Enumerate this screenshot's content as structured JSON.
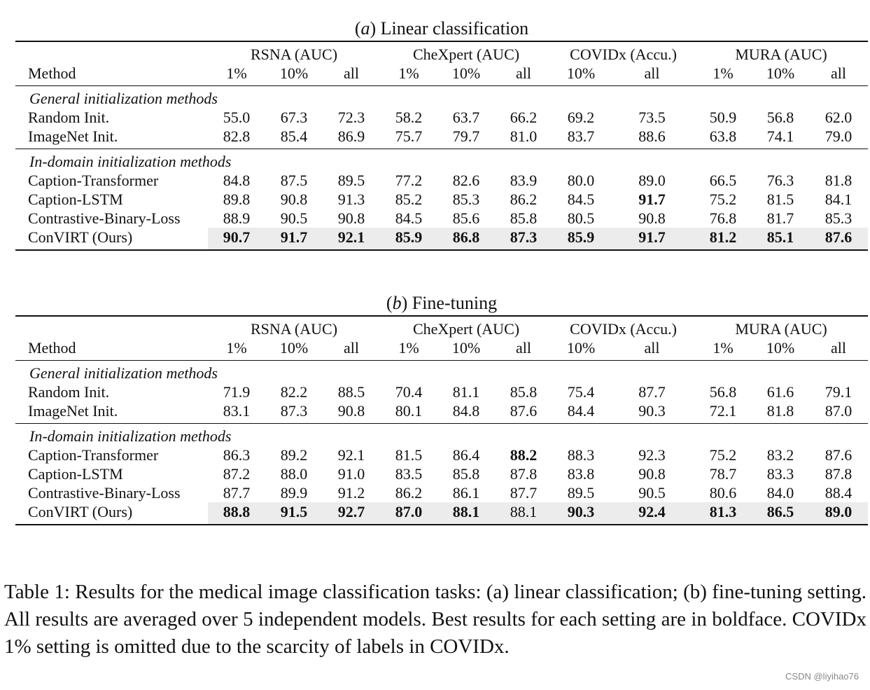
{
  "tables": [
    {
      "label": "a",
      "title": "Linear classification",
      "groups": [
        {
          "name": "RSNA (AUC)",
          "span": 3
        },
        {
          "name": "CheXpert (AUC)",
          "span": 3
        },
        {
          "name": "COVIDx (Accu.)",
          "span": 2
        },
        {
          "name": "MURA (AUC)",
          "span": 3
        }
      ],
      "method_header": "Method",
      "subheaders": [
        "1%",
        "10%",
        "all",
        "1%",
        "10%",
        "all",
        "10%",
        "all",
        "1%",
        "10%",
        "all"
      ],
      "sections": [
        {
          "title": "General initialization methods",
          "rows": [
            {
              "method": "Random Init.",
              "values": [
                "55.0",
                "67.3",
                "72.3",
                "58.2",
                "63.7",
                "66.2",
                "69.2",
                "73.5",
                "50.9",
                "56.8",
                "62.0"
              ],
              "bold": []
            },
            {
              "method": "ImageNet Init.",
              "values": [
                "82.8",
                "85.4",
                "86.9",
                "75.7",
                "79.7",
                "81.0",
                "83.7",
                "88.6",
                "63.8",
                "74.1",
                "79.0"
              ],
              "bold": []
            }
          ]
        },
        {
          "title": "In-domain initialization methods",
          "rows": [
            {
              "method": "Caption-Transformer",
              "values": [
                "84.8",
                "87.5",
                "89.5",
                "77.2",
                "82.6",
                "83.9",
                "80.0",
                "89.0",
                "66.5",
                "76.3",
                "81.8"
              ],
              "bold": []
            },
            {
              "method": "Caption-LSTM",
              "values": [
                "89.8",
                "90.8",
                "91.3",
                "85.2",
                "85.3",
                "86.2",
                "84.5",
                "91.7",
                "75.2",
                "81.5",
                "84.1"
              ],
              "bold": [
                7
              ]
            },
            {
              "method": "Contrastive-Binary-Loss",
              "values": [
                "88.9",
                "90.5",
                "90.8",
                "84.5",
                "85.6",
                "85.8",
                "80.5",
                "90.8",
                "76.8",
                "81.7",
                "85.3"
              ],
              "bold": []
            },
            {
              "method": "ConVIRT (Ours)",
              "values": [
                "90.7",
                "91.7",
                "92.1",
                "85.9",
                "86.8",
                "87.3",
                "85.9",
                "91.7",
                "81.2",
                "85.1",
                "87.6"
              ],
              "bold": [
                0,
                1,
                2,
                3,
                4,
                5,
                6,
                7,
                8,
                9,
                10
              ],
              "highlight": true
            }
          ]
        }
      ]
    },
    {
      "label": "b",
      "title": "Fine-tuning",
      "groups": [
        {
          "name": "RSNA (AUC)",
          "span": 3
        },
        {
          "name": "CheXpert (AUC)",
          "span": 3
        },
        {
          "name": "COVIDx (Accu.)",
          "span": 2
        },
        {
          "name": "MURA (AUC)",
          "span": 3
        }
      ],
      "method_header": "Method",
      "subheaders": [
        "1%",
        "10%",
        "all",
        "1%",
        "10%",
        "all",
        "10%",
        "all",
        "1%",
        "10%",
        "all"
      ],
      "sections": [
        {
          "title": "General initialization methods",
          "rows": [
            {
              "method": "Random Init.",
              "values": [
                "71.9",
                "82.2",
                "88.5",
                "70.4",
                "81.1",
                "85.8",
                "75.4",
                "87.7",
                "56.8",
                "61.6",
                "79.1"
              ],
              "bold": []
            },
            {
              "method": "ImageNet Init.",
              "values": [
                "83.1",
                "87.3",
                "90.8",
                "80.1",
                "84.8",
                "87.6",
                "84.4",
                "90.3",
                "72.1",
                "81.8",
                "87.0"
              ],
              "bold": []
            }
          ]
        },
        {
          "title": "In-domain initialization methods",
          "rows": [
            {
              "method": "Caption-Transformer",
              "values": [
                "86.3",
                "89.2",
                "92.1",
                "81.5",
                "86.4",
                "88.2",
                "88.3",
                "92.3",
                "75.2",
                "83.2",
                "87.6"
              ],
              "bold": [
                5
              ]
            },
            {
              "method": "Caption-LSTM",
              "values": [
                "87.2",
                "88.0",
                "91.0",
                "83.5",
                "85.8",
                "87.8",
                "83.8",
                "90.8",
                "78.7",
                "83.3",
                "87.8"
              ],
              "bold": []
            },
            {
              "method": "Contrastive-Binary-Loss",
              "values": [
                "87.7",
                "89.9",
                "91.2",
                "86.2",
                "86.1",
                "87.7",
                "89.5",
                "90.5",
                "80.6",
                "84.0",
                "88.4"
              ],
              "bold": []
            },
            {
              "method": "ConVIRT (Ours)",
              "values": [
                "88.8",
                "91.5",
                "92.7",
                "87.0",
                "88.1",
                "88.1",
                "90.3",
                "92.4",
                "81.3",
                "86.5",
                "89.0"
              ],
              "bold": [
                0,
                1,
                2,
                3,
                4,
                6,
                7,
                8,
                9,
                10
              ],
              "highlight": true
            }
          ]
        }
      ]
    }
  ],
  "caption": "Table 1: Results for the medical image classification tasks: (a) linear classification; (b) fine-tuning setting. All results are averaged over 5 independent models. Best results for each setting are in boldface. COVIDx 1% setting is omitted due to the scarcity of labels in COVIDx.",
  "watermark": "CSDN @liyihao76"
}
